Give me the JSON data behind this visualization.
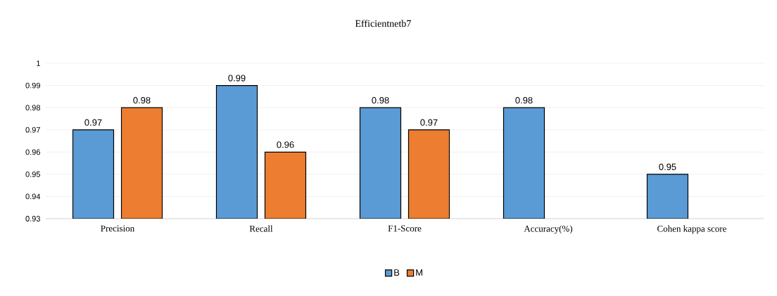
{
  "chart_data": {
    "type": "bar",
    "title": "Efficientnetb7",
    "categories": [
      "Precision",
      "Recall",
      "F1-Score",
      "Accuracy(%)",
      "Cohen kappa score"
    ],
    "series": [
      {
        "name": "B",
        "color": "#5b9bd5",
        "values": [
          0.97,
          0.99,
          0.98,
          0.98,
          0.95
        ]
      },
      {
        "name": "M",
        "color": "#ed7d31",
        "values": [
          0.98,
          0.96,
          0.97,
          null,
          null
        ]
      }
    ],
    "ylim": [
      0.93,
      1
    ],
    "yticks": [
      0.93,
      0.94,
      0.95,
      0.96,
      0.97,
      0.98,
      0.99,
      1
    ],
    "grid": "y",
    "legend": "bottom",
    "data_labels": true
  }
}
